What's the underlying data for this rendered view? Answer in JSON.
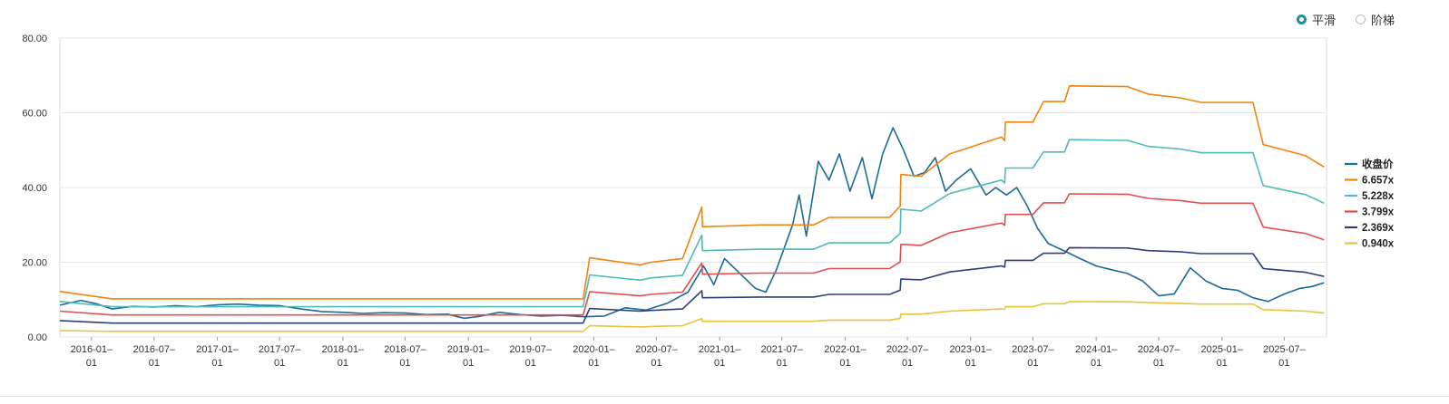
{
  "mode_toggle": {
    "smooth_label": "平滑",
    "step_label": "阶梯",
    "selected": "smooth"
  },
  "chart_data": {
    "type": "line",
    "ylim": [
      0,
      80
    ],
    "y_ticks": [
      "0.00",
      "20.00",
      "40.00",
      "60.00",
      "80.00"
    ],
    "x_range": [
      "2015-10-01",
      "2025-11-01"
    ],
    "x_ticks": [
      "2016-01-01",
      "2016-07-01",
      "2017-01-01",
      "2017-07-01",
      "2018-01-01",
      "2018-07-01",
      "2019-01-01",
      "2019-07-01",
      "2020-01-01",
      "2020-07-01",
      "2021-01-01",
      "2021-07-01",
      "2022-01-01",
      "2022-07-01",
      "2023-01-01",
      "2023-07-01",
      "2024-01-01",
      "2024-07-01",
      "2025-01-01",
      "2025-07-01"
    ],
    "legend_position": "right",
    "grid": true,
    "series": [
      {
        "name": "收盘价",
        "color": "#1a6b96",
        "width": 1.6,
        "points": [
          [
            "2015-10-01",
            8.5
          ],
          [
            "2015-12-01",
            9.8
          ],
          [
            "2016-01-15",
            8.9
          ],
          [
            "2016-03-01",
            7.5
          ],
          [
            "2016-05-01",
            8.2
          ],
          [
            "2016-07-01",
            8.0
          ],
          [
            "2016-09-01",
            8.4
          ],
          [
            "2016-11-01",
            8.1
          ],
          [
            "2017-01-01",
            8.6
          ],
          [
            "2017-03-01",
            8.8
          ],
          [
            "2017-05-01",
            8.5
          ],
          [
            "2017-07-01",
            8.4
          ],
          [
            "2017-09-01",
            7.5
          ],
          [
            "2017-11-01",
            6.8
          ],
          [
            "2018-01-01",
            6.6
          ],
          [
            "2018-03-01",
            6.3
          ],
          [
            "2018-05-01",
            6.5
          ],
          [
            "2018-07-01",
            6.4
          ],
          [
            "2018-09-01",
            6.0
          ],
          [
            "2018-11-01",
            6.1
          ],
          [
            "2018-12-20",
            5.0
          ],
          [
            "2019-02-01",
            5.5
          ],
          [
            "2019-04-01",
            6.6
          ],
          [
            "2019-06-01",
            6.0
          ],
          [
            "2019-08-01",
            5.6
          ],
          [
            "2019-10-01",
            5.8
          ],
          [
            "2019-12-01",
            5.4
          ],
          [
            "2020-02-01",
            5.6
          ],
          [
            "2020-04-01",
            7.8
          ],
          [
            "2020-06-01",
            7.2
          ],
          [
            "2020-08-01",
            9.0
          ],
          [
            "2020-10-01",
            12.0
          ],
          [
            "2020-11-15",
            19.0
          ],
          [
            "2020-12-15",
            14.0
          ],
          [
            "2021-01-15",
            21.0
          ],
          [
            "2021-03-01",
            17.0
          ],
          [
            "2021-04-15",
            13.0
          ],
          [
            "2021-05-15",
            12.0
          ],
          [
            "2021-06-15",
            18.0
          ],
          [
            "2021-08-01",
            30.0
          ],
          [
            "2021-08-20",
            38.0
          ],
          [
            "2021-09-10",
            27.0
          ],
          [
            "2021-10-15",
            47.0
          ],
          [
            "2021-11-15",
            42.0
          ],
          [
            "2021-12-15",
            49.0
          ],
          [
            "2022-01-15",
            39.0
          ],
          [
            "2022-02-20",
            48.0
          ],
          [
            "2022-03-20",
            37.0
          ],
          [
            "2022-04-20",
            49.0
          ],
          [
            "2022-05-20",
            56.0
          ],
          [
            "2022-06-20",
            50.0
          ],
          [
            "2022-07-20",
            43.0
          ],
          [
            "2022-08-20",
            44.0
          ],
          [
            "2022-09-20",
            48.0
          ],
          [
            "2022-10-20",
            39.0
          ],
          [
            "2022-11-20",
            42.0
          ],
          [
            "2023-01-01",
            45.0
          ],
          [
            "2023-02-15",
            38.0
          ],
          [
            "2023-03-15",
            40.0
          ],
          [
            "2023-04-15",
            38.0
          ],
          [
            "2023-05-15",
            40.0
          ],
          [
            "2023-06-15",
            35.0
          ],
          [
            "2023-07-15",
            29.0
          ],
          [
            "2023-08-15",
            25.0
          ],
          [
            "2023-10-01",
            23.0
          ],
          [
            "2023-11-15",
            21.0
          ],
          [
            "2024-01-01",
            19.0
          ],
          [
            "2024-02-15",
            18.0
          ],
          [
            "2024-04-01",
            17.0
          ],
          [
            "2024-05-15",
            15.0
          ],
          [
            "2024-07-01",
            11.0
          ],
          [
            "2024-08-15",
            11.5
          ],
          [
            "2024-10-01",
            18.5
          ],
          [
            "2024-11-15",
            15.0
          ],
          [
            "2025-01-01",
            13.0
          ],
          [
            "2025-02-15",
            12.5
          ],
          [
            "2025-04-01",
            10.5
          ],
          [
            "2025-05-15",
            9.5
          ],
          [
            "2025-07-01",
            11.5
          ],
          [
            "2025-08-15",
            13.0
          ],
          [
            "2025-09-20",
            13.5
          ],
          [
            "2025-10-25",
            14.5
          ]
        ]
      },
      {
        "name": "6.657x",
        "color": "#f0840f",
        "width": 1.6,
        "points": [
          [
            "2015-10-01",
            12.2
          ],
          [
            "2016-03-01",
            10.2
          ],
          [
            "2019-12-01",
            10.2
          ],
          [
            "2019-12-20",
            21.2
          ],
          [
            "2020-05-15",
            19.3
          ],
          [
            "2020-06-15",
            20.0
          ],
          [
            "2020-09-15",
            21.0
          ],
          [
            "2020-11-10",
            34.8
          ],
          [
            "2020-11-12",
            29.5
          ],
          [
            "2021-05-01",
            30.0
          ],
          [
            "2021-10-01",
            30.0
          ],
          [
            "2021-11-15",
            32.0
          ],
          [
            "2022-05-10",
            32.0
          ],
          [
            "2022-06-10",
            35.0
          ],
          [
            "2022-06-12",
            43.5
          ],
          [
            "2022-08-10",
            43.0
          ],
          [
            "2022-11-01",
            49.0
          ],
          [
            "2023-04-01",
            53.5
          ],
          [
            "2023-04-10",
            52.5
          ],
          [
            "2023-04-12",
            57.5
          ],
          [
            "2023-07-01",
            57.5
          ],
          [
            "2023-08-01",
            63.0
          ],
          [
            "2023-10-01",
            63.0
          ],
          [
            "2023-10-15",
            67.2
          ],
          [
            "2024-04-01",
            67.0
          ],
          [
            "2024-06-01",
            65.0
          ],
          [
            "2024-09-01",
            64.0
          ],
          [
            "2024-11-01",
            62.8
          ],
          [
            "2025-04-01",
            62.8
          ],
          [
            "2025-05-01",
            51.5
          ],
          [
            "2025-09-01",
            48.5
          ],
          [
            "2025-10-25",
            45.5
          ]
        ]
      },
      {
        "name": "5.228x",
        "color": "#4fb9bb",
        "width": 1.6,
        "points": [
          [
            "2015-10-01",
            9.5
          ],
          [
            "2016-03-01",
            8.1
          ],
          [
            "2019-12-01",
            8.1
          ],
          [
            "2019-12-20",
            16.6
          ],
          [
            "2020-05-15",
            15.2
          ],
          [
            "2020-06-15",
            15.8
          ],
          [
            "2020-09-15",
            16.5
          ],
          [
            "2020-11-10",
            27.3
          ],
          [
            "2020-11-12",
            23.1
          ],
          [
            "2021-05-01",
            23.5
          ],
          [
            "2021-10-01",
            23.5
          ],
          [
            "2021-11-15",
            25.2
          ],
          [
            "2022-05-10",
            25.2
          ],
          [
            "2022-06-10",
            27.7
          ],
          [
            "2022-06-12",
            34.2
          ],
          [
            "2022-08-10",
            33.7
          ],
          [
            "2022-11-01",
            38.4
          ],
          [
            "2023-04-01",
            42.0
          ],
          [
            "2023-04-10",
            41.2
          ],
          [
            "2023-04-12",
            45.2
          ],
          [
            "2023-07-01",
            45.2
          ],
          [
            "2023-08-01",
            49.5
          ],
          [
            "2023-10-01",
            49.5
          ],
          [
            "2023-10-15",
            52.8
          ],
          [
            "2024-04-01",
            52.6
          ],
          [
            "2024-06-01",
            51.0
          ],
          [
            "2024-09-01",
            50.3
          ],
          [
            "2024-11-01",
            49.3
          ],
          [
            "2025-04-01",
            49.3
          ],
          [
            "2025-05-01",
            40.5
          ],
          [
            "2025-09-01",
            38.1
          ],
          [
            "2025-10-25",
            35.8
          ]
        ]
      },
      {
        "name": "3.799x",
        "color": "#e04f4f",
        "width": 1.6,
        "points": [
          [
            "2015-10-01",
            6.9
          ],
          [
            "2016-03-01",
            5.9
          ],
          [
            "2019-12-01",
            5.9
          ],
          [
            "2019-12-20",
            12.1
          ],
          [
            "2020-05-15",
            11.0
          ],
          [
            "2020-06-15",
            11.4
          ],
          [
            "2020-09-15",
            12.0
          ],
          [
            "2020-11-10",
            19.8
          ],
          [
            "2020-11-12",
            16.8
          ],
          [
            "2021-05-01",
            17.1
          ],
          [
            "2021-10-01",
            17.1
          ],
          [
            "2021-11-15",
            18.3
          ],
          [
            "2022-05-10",
            18.3
          ],
          [
            "2022-06-10",
            20.1
          ],
          [
            "2022-06-12",
            24.8
          ],
          [
            "2022-08-10",
            24.5
          ],
          [
            "2022-11-01",
            27.9
          ],
          [
            "2023-04-01",
            30.5
          ],
          [
            "2023-04-10",
            29.9
          ],
          [
            "2023-04-12",
            32.8
          ],
          [
            "2023-07-01",
            32.8
          ],
          [
            "2023-08-01",
            35.9
          ],
          [
            "2023-10-01",
            35.9
          ],
          [
            "2023-10-15",
            38.3
          ],
          [
            "2024-04-01",
            38.2
          ],
          [
            "2024-06-01",
            37.1
          ],
          [
            "2024-09-01",
            36.5
          ],
          [
            "2024-11-01",
            35.8
          ],
          [
            "2025-04-01",
            35.8
          ],
          [
            "2025-05-01",
            29.4
          ],
          [
            "2025-09-01",
            27.7
          ],
          [
            "2025-10-25",
            26.0
          ]
        ]
      },
      {
        "name": "2.369x",
        "color": "#2d3f7a",
        "width": 1.6,
        "points": [
          [
            "2015-10-01",
            4.4
          ],
          [
            "2016-03-01",
            3.7
          ],
          [
            "2019-12-01",
            3.7
          ],
          [
            "2019-12-20",
            7.6
          ],
          [
            "2020-05-15",
            6.9
          ],
          [
            "2020-06-15",
            7.1
          ],
          [
            "2020-09-15",
            7.5
          ],
          [
            "2020-11-10",
            12.4
          ],
          [
            "2020-11-12",
            10.5
          ],
          [
            "2021-05-01",
            10.7
          ],
          [
            "2021-10-01",
            10.7
          ],
          [
            "2021-11-15",
            11.4
          ],
          [
            "2022-05-10",
            11.4
          ],
          [
            "2022-06-10",
            12.5
          ],
          [
            "2022-06-12",
            15.5
          ],
          [
            "2022-08-10",
            15.3
          ],
          [
            "2022-11-01",
            17.4
          ],
          [
            "2023-04-01",
            19.0
          ],
          [
            "2023-04-10",
            18.7
          ],
          [
            "2023-04-12",
            20.5
          ],
          [
            "2023-07-01",
            20.5
          ],
          [
            "2023-08-01",
            22.4
          ],
          [
            "2023-10-01",
            22.4
          ],
          [
            "2023-10-15",
            23.9
          ],
          [
            "2024-04-01",
            23.8
          ],
          [
            "2024-06-01",
            23.1
          ],
          [
            "2024-09-01",
            22.8
          ],
          [
            "2024-11-01",
            22.3
          ],
          [
            "2025-04-01",
            22.3
          ],
          [
            "2025-05-01",
            18.3
          ],
          [
            "2025-09-01",
            17.3
          ],
          [
            "2025-10-25",
            16.2
          ]
        ]
      },
      {
        "name": "0.940x",
        "color": "#e8c33c",
        "width": 1.6,
        "points": [
          [
            "2015-10-01",
            1.7
          ],
          [
            "2016-03-01",
            1.5
          ],
          [
            "2019-12-01",
            1.5
          ],
          [
            "2019-12-20",
            3.0
          ],
          [
            "2020-05-15",
            2.7
          ],
          [
            "2020-06-15",
            2.8
          ],
          [
            "2020-09-15",
            3.0
          ],
          [
            "2020-11-10",
            4.9
          ],
          [
            "2020-11-12",
            4.2
          ],
          [
            "2021-05-01",
            4.2
          ],
          [
            "2021-10-01",
            4.2
          ],
          [
            "2021-11-15",
            4.5
          ],
          [
            "2022-05-10",
            4.5
          ],
          [
            "2022-06-10",
            5.0
          ],
          [
            "2022-06-12",
            6.1
          ],
          [
            "2022-08-10",
            6.1
          ],
          [
            "2022-11-01",
            6.9
          ],
          [
            "2023-04-01",
            7.5
          ],
          [
            "2023-04-10",
            7.4
          ],
          [
            "2023-04-12",
            8.1
          ],
          [
            "2023-07-01",
            8.1
          ],
          [
            "2023-08-01",
            8.9
          ],
          [
            "2023-10-01",
            8.9
          ],
          [
            "2023-10-15",
            9.5
          ],
          [
            "2024-04-01",
            9.4
          ],
          [
            "2024-06-01",
            9.2
          ],
          [
            "2024-09-01",
            9.0
          ],
          [
            "2024-11-01",
            8.8
          ],
          [
            "2025-04-01",
            8.8
          ],
          [
            "2025-05-01",
            7.3
          ],
          [
            "2025-09-01",
            6.9
          ],
          [
            "2025-10-25",
            6.4
          ]
        ]
      }
    ]
  }
}
